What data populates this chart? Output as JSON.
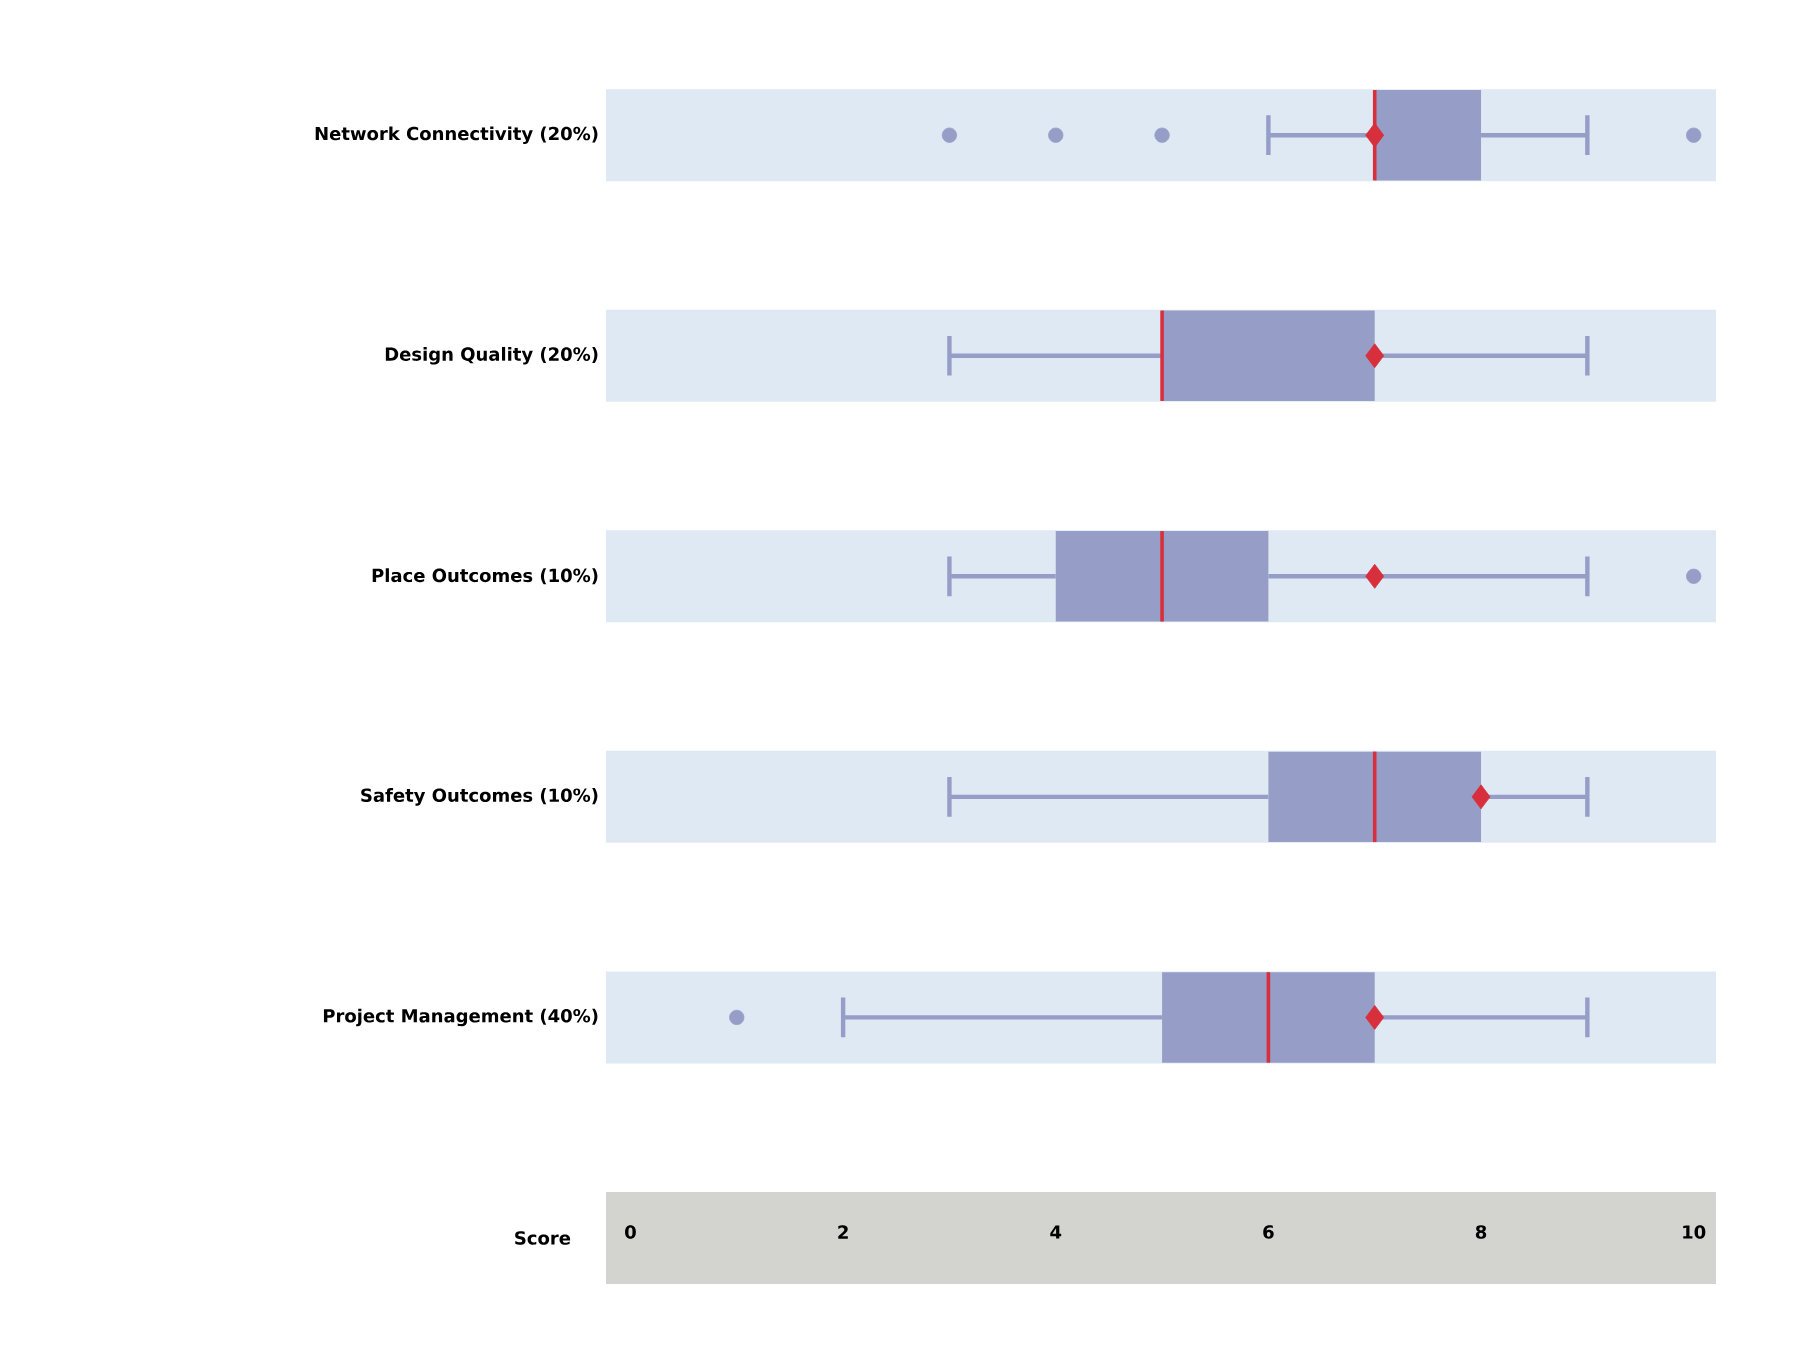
{
  "chart_data": {
    "type": "box",
    "orientation": "horizontal",
    "xlabel": "Score",
    "color": "#969ec8",
    "categories": [
      "Network Connectivity (20%)",
      "Design Quality (20%)",
      "Place Outcomes (10%)",
      "Safety Outcomes (10%)",
      "Project Management (40%)"
    ],
    "boxes": [
      {
        "low": 6,
        "q1": 7,
        "median": 7,
        "q3": 8,
        "high": 9,
        "mean": 7,
        "outliers": [
          3,
          4,
          5,
          10
        ]
      },
      {
        "low": 3,
        "q1": 5,
        "median": 5,
        "q3": 7,
        "high": 9,
        "mean": 7
      },
      {
        "low": 3,
        "q1": 4,
        "median": 5,
        "q3": 6,
        "high": 9,
        "mean": 7,
        "outliers": [
          10
        ]
      },
      {
        "low": 3,
        "q1": 6,
        "median": 7,
        "q3": 8,
        "high": 9,
        "mean": 8
      },
      {
        "low": 2,
        "q1": 5,
        "median": 6,
        "q3": 7,
        "high": 9,
        "mean": 7,
        "outliers": [
          1
        ]
      }
    ],
    "grid": "y",
    "xlim": [
      -0.23,
      10.21
    ],
    "xticks": [
      0,
      2,
      4,
      6,
      8,
      10
    ]
  }
}
